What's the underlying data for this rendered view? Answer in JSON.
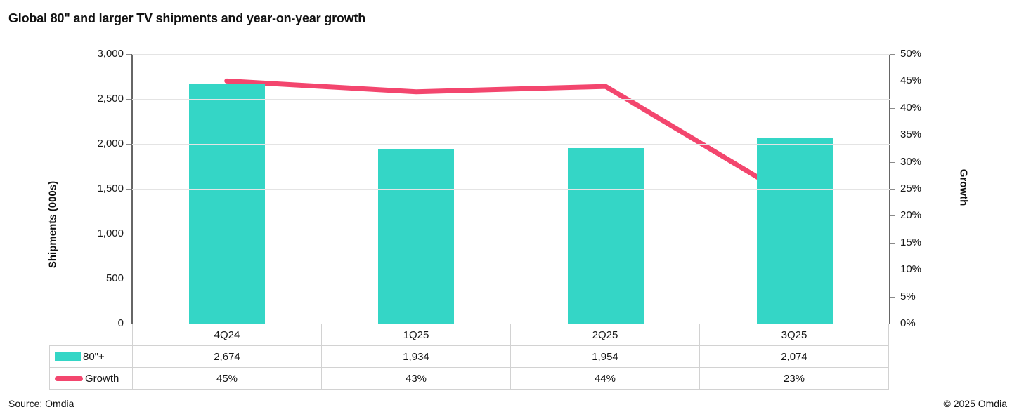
{
  "title": "Global 80\" and larger TV shipments and year-on-year growth",
  "footer": {
    "source": "Source: Omdia",
    "copyright": "© 2025 Omdia"
  },
  "colors": {
    "bar": "#34d6c6",
    "line": "#f3466e",
    "grid": "#e4e4e4",
    "axis": "#666666",
    "table_border": "#d2d2d2",
    "text": "#141414"
  },
  "chart_data": {
    "type": "bar+line combo with data table",
    "categories": [
      "4Q24",
      "1Q25",
      "2Q25",
      "3Q25"
    ],
    "series": [
      {
        "name": "80\"+",
        "type": "bar",
        "axis": "left",
        "values": [
          2674,
          1934,
          1954,
          2074
        ],
        "labels": [
          "2,674",
          "1,934",
          "1,954",
          "2,074"
        ]
      },
      {
        "name": "Growth",
        "type": "line",
        "axis": "right",
        "values": [
          45,
          43,
          44,
          23
        ],
        "labels": [
          "45%",
          "43%",
          "44%",
          "23%"
        ]
      }
    ],
    "left_axis": {
      "title": "Shipments (000s)",
      "min": 0,
      "max": 3000,
      "step": 500,
      "tick_labels": [
        "0",
        "500",
        "1,000",
        "1,500",
        "2,000",
        "2,500",
        "3,000"
      ]
    },
    "right_axis": {
      "title": "Growth",
      "min": 0,
      "max": 50,
      "step": 5,
      "tick_labels": [
        "0%",
        "5%",
        "10%",
        "15%",
        "20%",
        "25%",
        "30%",
        "35%",
        "40%",
        "45%",
        "50%"
      ]
    },
    "grid": true,
    "legend_position": "table-left"
  }
}
